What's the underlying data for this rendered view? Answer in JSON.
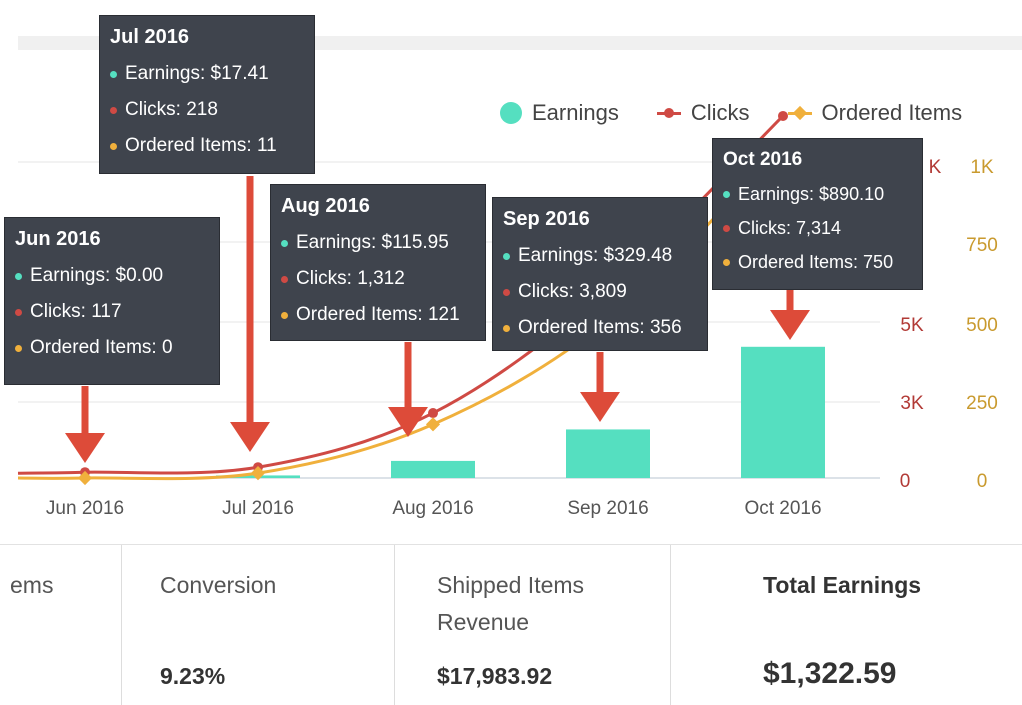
{
  "chart_data": {
    "type": "bar",
    "categories": [
      "Jun 2016",
      "Jul 2016",
      "Aug 2016",
      "Sep 2016",
      "Oct 2016"
    ],
    "series": [
      {
        "name": "Earnings",
        "type": "bar",
        "values": [
          0.0,
          17.41,
          115.95,
          329.48,
          890.1
        ],
        "color": "#55dfc0"
      },
      {
        "name": "Clicks",
        "type": "line",
        "values": [
          117,
          218,
          1312,
          3809,
          7314
        ],
        "color": "#cf4a44"
      },
      {
        "name": "Ordered Items",
        "type": "line",
        "values": [
          0,
          11,
          121,
          356,
          750
        ],
        "color": "#f0b03c"
      }
    ],
    "y_axes": {
      "clicks": {
        "ticks": [
          "0",
          "3K",
          "5K",
          "K"
        ],
        "color": "#b23a36"
      },
      "ordered_items": {
        "ticks": [
          "0",
          "250",
          "500",
          "750",
          "1K"
        ],
        "color": "#c99a2e"
      }
    },
    "legend": {
      "placement": "top-right",
      "items": [
        "Earnings",
        "Clicks",
        "Ordered Items"
      ]
    },
    "tooltips": [
      {
        "title": "Jun 2016",
        "earnings": "Earnings: $0.00",
        "clicks": "Clicks: 117",
        "ordered": "Ordered Items: 0"
      },
      {
        "title": "Jul 2016",
        "earnings": "Earnings: $17.41",
        "clicks": "Clicks: 218",
        "ordered": "Ordered Items: 11"
      },
      {
        "title": "Aug 2016",
        "earnings": "Earnings: $115.95",
        "clicks": "Clicks: 1,312",
        "ordered": "Ordered Items: 121"
      },
      {
        "title": "Sep 2016",
        "earnings": "Earnings: $329.48",
        "clicks": "Clicks: 3,809",
        "ordered": "Ordered Items: 356"
      },
      {
        "title": "Oct 2016",
        "earnings": "Earnings: $890.10",
        "clicks": "Clicks: 7,314",
        "ordered": "Ordered Items: 750"
      }
    ]
  },
  "stats": [
    {
      "label": "ems",
      "value": ""
    },
    {
      "label": "Conversion",
      "value": "9.23%"
    },
    {
      "label": "Shipped Items Revenue",
      "value": "$17,983.92"
    },
    {
      "label": "Total Earnings",
      "value": "$1,322.59"
    }
  ],
  "colors": {
    "earnings": "#55dfc0",
    "clicks": "#cf4a44",
    "ordered": "#f0b03c",
    "arrow": "#dd4b39",
    "tooltip_bg": "#3f444d"
  }
}
